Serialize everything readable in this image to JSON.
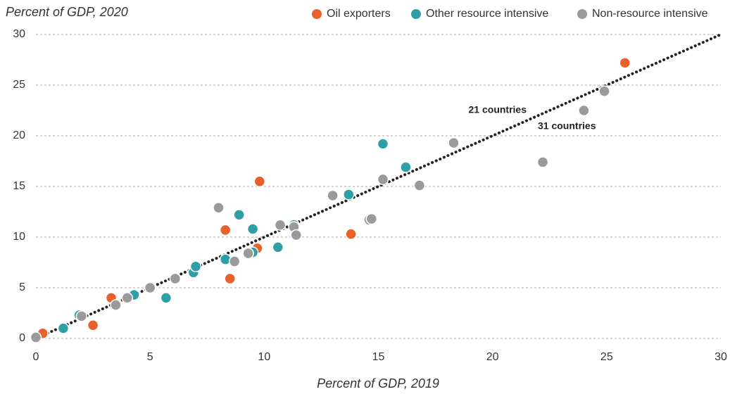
{
  "chart_data": {
    "type": "scatter",
    "y_axis_label": "Percent of GDP, 2020",
    "x_axis_label": "Percent of GDP, 2019",
    "xlim": [
      0,
      30
    ],
    "xticks": [
      0,
      5,
      10,
      15,
      20,
      25,
      30
    ],
    "ylim": [
      0,
      30
    ],
    "yticks": [
      0,
      5,
      10,
      15,
      20,
      25,
      30
    ],
    "grid": true,
    "legend": "top-right",
    "annotations": [
      "21 countries",
      "31 countries"
    ],
    "series": [
      {
        "name": "Oil exporters",
        "color": "#e8602c",
        "x": [
          0.3,
          2.5,
          3.3,
          8.3,
          8.5,
          9.7,
          9.8,
          13.8,
          25.8
        ],
        "values": [
          0.5,
          1.3,
          4.0,
          10.7,
          5.9,
          8.9,
          15.5,
          10.3,
          27.2
        ]
      },
      {
        "name": "Other resource intensive",
        "color": "#2e9fa6",
        "x": [
          1.2,
          1.9,
          4.3,
          5.7,
          6.9,
          7.0,
          8.3,
          8.9,
          9.5,
          9.5,
          10.6,
          11.3,
          13.7,
          15.2,
          16.2
        ],
        "values": [
          1.0,
          2.3,
          4.3,
          4.0,
          6.5,
          7.1,
          7.8,
          12.2,
          10.8,
          8.5,
          9.0,
          11.2,
          14.2,
          19.2,
          16.9
        ]
      },
      {
        "name": "Non-resource intensive",
        "color": "#9a9a9c",
        "x": [
          0.0,
          2.0,
          3.5,
          4.0,
          5.0,
          6.1,
          8.0,
          8.7,
          9.3,
          10.7,
          11.3,
          11.4,
          13.0,
          14.6,
          14.7,
          15.2,
          16.8,
          18.3,
          22.2,
          24.0,
          24.9
        ],
        "values": [
          0.1,
          2.2,
          3.3,
          4.0,
          5.0,
          5.9,
          12.9,
          7.6,
          8.4,
          11.2,
          11.0,
          10.2,
          14.1,
          11.7,
          11.8,
          15.7,
          15.1,
          19.3,
          17.4,
          22.5,
          24.4
        ]
      }
    ]
  }
}
